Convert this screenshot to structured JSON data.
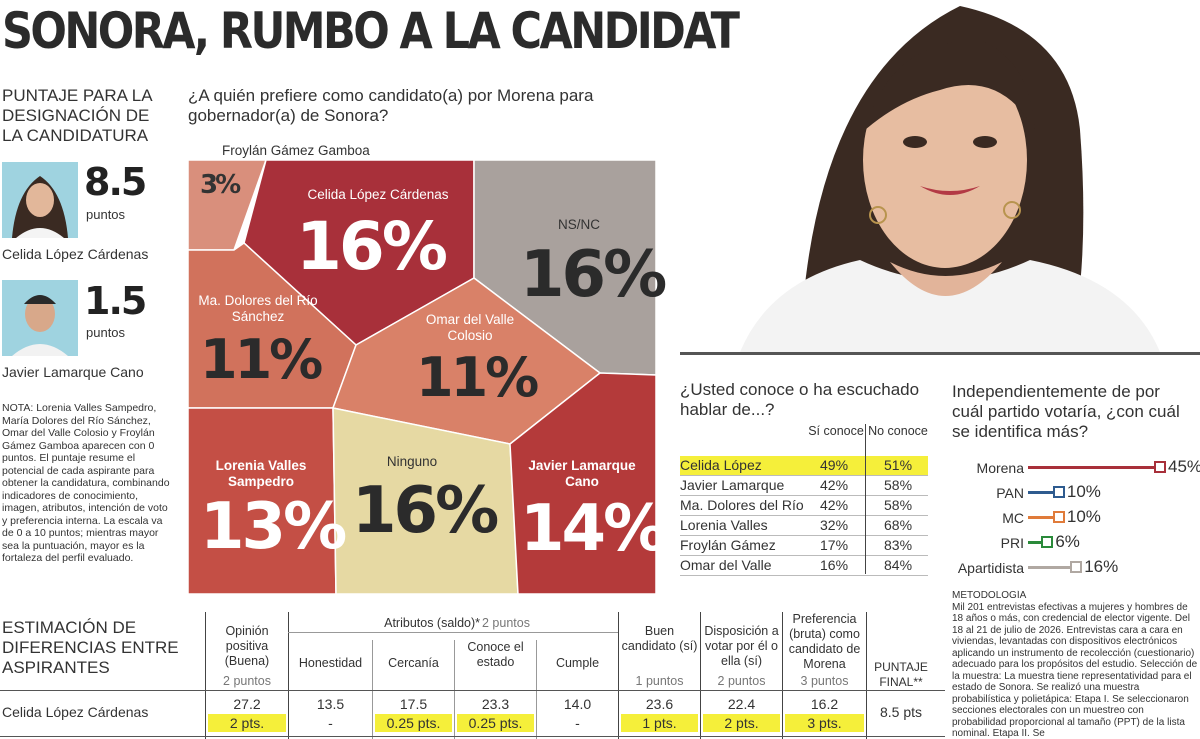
{
  "title": "SONORA, RUMBO A LA CANDIDATURA",
  "score_section": {
    "heading": "PUNTAJE PARA LA DESIGNACIÓN DE LA CANDIDATURA",
    "candidates": [
      {
        "score": "8.5",
        "unit": "puntos",
        "name": "Celida López Cárdenas"
      },
      {
        "score": "1.5",
        "unit": "puntos",
        "name": "Javier Lamarque Cano"
      }
    ],
    "note": "NOTA: Lorenia Valles Sampedro, María Dolores del Río Sánchez, Omar del Valle Colosio y Froylán Gámez Gamboa aparecen con 0 puntos. El puntaje resume el potencial de cada aspirante para obtener la candidatura, combinando indicadores de conocimiento, imagen, atributos, intención de voto y preferencia interna. La escala va de 0 a 10 puntos; mientras mayor sea la puntuación, mayor es la fortaleza del perfil evaluado."
  },
  "question1": "¿A quién prefiere como candidato(a) por Morena para gobernador(a) de Sonora?",
  "question2": "¿Usted conoce o ha escuchado hablar de...?",
  "question3": "Independientemente de por cuál partido votaría, ¿con cuál se identifica más?",
  "chart_data": [
    {
      "type": "treemap",
      "categories": [
        "Froylán Gámez Gamboa",
        "Celida López Cárdenas",
        "NS/NC",
        "Ma. Dolores del Río Sánchez",
        "Omar del Valle Colosio",
        "Lorenia Valles Sampedro",
        "Ninguno",
        "Javier Lamarque Cano"
      ],
      "values": [
        3,
        16,
        16,
        11,
        11,
        13,
        16,
        14
      ],
      "labels": [
        "3%",
        "16%",
        "16%",
        "11%",
        "11%",
        "13%",
        "16%",
        "14%"
      ],
      "colors": [
        "#d98f7c",
        "#a8303a",
        "#a9a19d",
        "#d1725c",
        "#d98168",
        "#c44f45",
        "#e6d9a3",
        "#b43a3a"
      ]
    },
    {
      "type": "table",
      "columns": [
        "Sí conoce",
        "No conoce"
      ],
      "rows": [
        {
          "name": "Celida López",
          "si": "49%",
          "no": "51%",
          "highlight": true
        },
        {
          "name": "Javier Lamarque",
          "si": "42%",
          "no": "58%"
        },
        {
          "name": "Ma. Dolores del Río",
          "si": "42%",
          "no": "58%"
        },
        {
          "name": "Lorenia Valles",
          "si": "32%",
          "no": "68%"
        },
        {
          "name": "Froylán Gámez",
          "si": "17%",
          "no": "83%"
        },
        {
          "name": "Omar del Valle",
          "si": "16%",
          "no": "84%"
        }
      ]
    },
    {
      "type": "bar",
      "categories": [
        "Morena",
        "PAN",
        "MC",
        "PRI",
        "Apartidista"
      ],
      "values": [
        45,
        10,
        10,
        6,
        16
      ],
      "labels": [
        "45%",
        "10%",
        "10%",
        "6%",
        "16%"
      ],
      "colors": [
        "#a8303a",
        "#2e5b8f",
        "#e07b3a",
        "#2a8a3a",
        "#b0a8a2"
      ],
      "ylim": [
        0,
        45
      ]
    }
  ],
  "kn_header": {
    "si": "Sí conoce",
    "no": "No conoce"
  },
  "methodology": "METODOLOGÍA\nMil 201 entrevistas efectivas a mujeres y hombres de 18 años o más, con credencial de elector vigente. Del 18 al 21 de julio de 2026. Entrevistas cara a cara en viviendas, levantadas con dispositivos electrónicos aplicando un instrumento de recolección (cuestionario) adecuado para los propósitos del estudio. Selección de la muestra: La muestra tiene representatividad para el estado de Sonora. Se realizó una muestra probabilística y polietápica: Etapa I. Se seleccionaron secciones electorales con un muestreo con probabilidad proporcional al tamaño (PPT) de la lista nominal. Etapa II. Se",
  "estimation": {
    "heading": "ESTIMACIÓN DE DIFERENCIAS ENTRE ASPIRANTES",
    "col_opinion": "Opinión positiva (Buena)",
    "col_opinion_pts": "2 puntos",
    "attr_group": "Atributos (saldo)*",
    "attr_pts": "2 puntos",
    "col_honestidad": "Honestidad",
    "col_cercania": "Cercanía",
    "col_conoce": "Conoce el estado",
    "col_cumple": "Cumple",
    "col_buen": "Buen candidato (sí)",
    "col_buen_pts": "1 puntos",
    "col_disp": "Disposición a votar por él o ella (sí)",
    "col_disp_pts": "2 puntos",
    "col_pref": "Preferencia (bruta) como candidato de Morena",
    "col_pref_pts": "3 puntos",
    "col_final": "PUNTAJE FINAL**",
    "row_name": "Celida López Cárdenas",
    "values": [
      "27.2",
      "13.5",
      "17.5",
      "23.3",
      "14.0",
      "23.6",
      "22.4",
      "16.2"
    ],
    "points": [
      "2 pts.",
      "-",
      "0.25 pts.",
      "0.25 pts.",
      "-",
      "1 pts.",
      "2 pts.",
      "3 pts."
    ],
    "final": "8.5 pts"
  }
}
